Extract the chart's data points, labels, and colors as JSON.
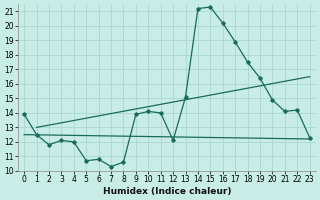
{
  "xlabel": "Humidex (Indice chaleur)",
  "bg_color": "#c8ece6",
  "grid_color": "#a8d8d0",
  "line_color": "#1a6b5a",
  "xlim": [
    -0.5,
    23.5
  ],
  "ylim": [
    10,
    21.5
  ],
  "xticks": [
    0,
    1,
    2,
    3,
    4,
    5,
    6,
    7,
    8,
    9,
    10,
    11,
    12,
    13,
    14,
    15,
    16,
    17,
    18,
    19,
    20,
    21,
    22,
    23
  ],
  "yticks": [
    10,
    11,
    12,
    13,
    14,
    15,
    16,
    17,
    18,
    19,
    20,
    21
  ],
  "series1_x": [
    0,
    1,
    2,
    3,
    4,
    5,
    6,
    7,
    8,
    9,
    10,
    11,
    12,
    13,
    14,
    15,
    16,
    17,
    18,
    19,
    20,
    21,
    22,
    23
  ],
  "series1_y": [
    13.9,
    12.5,
    11.8,
    12.1,
    12.0,
    10.7,
    10.8,
    10.3,
    10.6,
    13.9,
    14.1,
    14.0,
    12.1,
    15.1,
    21.2,
    21.3,
    20.2,
    18.9,
    17.5,
    16.4,
    14.9,
    14.1,
    14.2,
    12.3
  ],
  "series2_x": [
    0,
    23
  ],
  "series2_y": [
    12.5,
    12.2
  ],
  "series3_x": [
    1,
    23
  ],
  "series3_y": [
    13.0,
    16.5
  ],
  "xlabel_fontsize": 6.5,
  "tick_fontsize": 5.5
}
